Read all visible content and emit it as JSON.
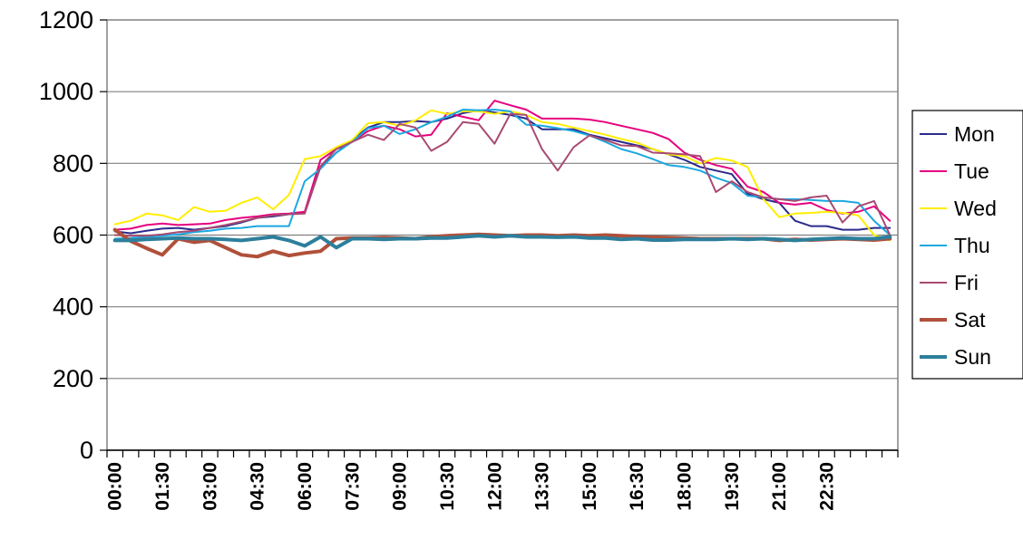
{
  "chart_data": {
    "type": "line",
    "title": "",
    "xlabel": "",
    "ylabel": "",
    "ylim": [
      0,
      1200
    ],
    "yticks": [
      "0",
      "200",
      "400",
      "600",
      "800",
      "1000",
      "1200"
    ],
    "xtick_labels": [
      "00:00",
      "01:30",
      "03:00",
      "04:30",
      "06:00",
      "07:30",
      "09:00",
      "10:30",
      "12:00",
      "13:30",
      "15:00",
      "16:30",
      "18:00",
      "19:30",
      "21:00",
      "22:30"
    ],
    "grid": "horizontal",
    "legend": "right",
    "series": [
      {
        "name": "Mon",
        "color": "#2b2b8c",
        "width": 2,
        "values": [
          610,
          605,
          612,
          618,
          620,
          615,
          620,
          625,
          635,
          648,
          652,
          658,
          662,
          790,
          830,
          865,
          900,
          915,
          915,
          918,
          915,
          925,
          940,
          948,
          942,
          935,
          925,
          895,
          895,
          895,
          880,
          870,
          860,
          850,
          840,
          825,
          810,
          790,
          780,
          770,
          715,
          700,
          690,
          640,
          625,
          625,
          615,
          615,
          620,
          620
        ]
      },
      {
        "name": "Tue",
        "color": "#e6007e",
        "width": 2,
        "values": [
          615,
          618,
          628,
          632,
          628,
          630,
          632,
          642,
          648,
          652,
          658,
          660,
          665,
          810,
          840,
          860,
          890,
          905,
          895,
          875,
          880,
          940,
          930,
          920,
          975,
          962,
          950,
          925,
          925,
          925,
          922,
          915,
          905,
          895,
          885,
          868,
          830,
          810,
          795,
          785,
          735,
          720,
          690,
          685,
          690,
          670,
          660,
          665,
          680,
          640
        ]
      },
      {
        "name": "Wed",
        "color": "#ffee00",
        "width": 2,
        "values": [
          630,
          640,
          660,
          655,
          642,
          678,
          665,
          668,
          690,
          705,
          672,
          712,
          812,
          820,
          845,
          865,
          912,
          915,
          905,
          920,
          948,
          938,
          945,
          945,
          938,
          945,
          935,
          915,
          910,
          900,
          890,
          880,
          868,
          858,
          840,
          825,
          820,
          800,
          815,
          808,
          790,
          700,
          650,
          660,
          662,
          665,
          662,
          655,
          600,
          585
        ]
      },
      {
        "name": "Thu",
        "color": "#1aa8e0",
        "width": 2,
        "values": [
          590,
          592,
          595,
          598,
          602,
          608,
          612,
          618,
          620,
          625,
          625,
          625,
          750,
          785,
          830,
          860,
          898,
          905,
          882,
          895,
          915,
          930,
          950,
          948,
          950,
          945,
          908,
          905,
          898,
          890,
          878,
          860,
          840,
          828,
          812,
          795,
          790,
          780,
          760,
          745,
          710,
          705,
          700,
          700,
          698,
          695,
          695,
          690,
          640,
          600
        ]
      },
      {
        "name": "Fri",
        "color": "#a84a72",
        "width": 2,
        "values": [
          600,
          598,
          598,
          602,
          608,
          612,
          620,
          628,
          638,
          648,
          655,
          658,
          660,
          792,
          840,
          860,
          880,
          865,
          910,
          900,
          835,
          860,
          915,
          910,
          855,
          938,
          935,
          840,
          780,
          845,
          878,
          865,
          850,
          848,
          830,
          828,
          825,
          820,
          720,
          750,
          720,
          705,
          700,
          695,
          705,
          710,
          635,
          680,
          695,
          600
        ]
      },
      {
        "name": "Sat",
        "color": "#b0503a",
        "width": 4,
        "values": [
          615,
          583,
          563,
          545,
          590,
          580,
          585,
          565,
          545,
          540,
          555,
          543,
          550,
          555,
          590,
          592,
          592,
          593,
          592,
          590,
          595,
          598,
          600,
          602,
          600,
          598,
          600,
          600,
          598,
          600,
          598,
          600,
          598,
          596,
          594,
          593,
          592,
          590,
          590,
          590,
          590,
          590,
          585,
          588,
          586,
          588,
          590,
          588,
          586,
          590
        ]
      },
      {
        "name": "Sun",
        "color": "#2d7f9c",
        "width": 4,
        "values": [
          585,
          585,
          588,
          590,
          592,
          590,
          590,
          588,
          585,
          590,
          595,
          585,
          570,
          595,
          565,
          590,
          590,
          588,
          590,
          590,
          592,
          592,
          595,
          598,
          595,
          598,
          595,
          595,
          594,
          595,
          592,
          592,
          588,
          590,
          586,
          586,
          588,
          588,
          588,
          590,
          588,
          590,
          588,
          585,
          588,
          590,
          592,
          590,
          590,
          595
        ]
      }
    ]
  }
}
